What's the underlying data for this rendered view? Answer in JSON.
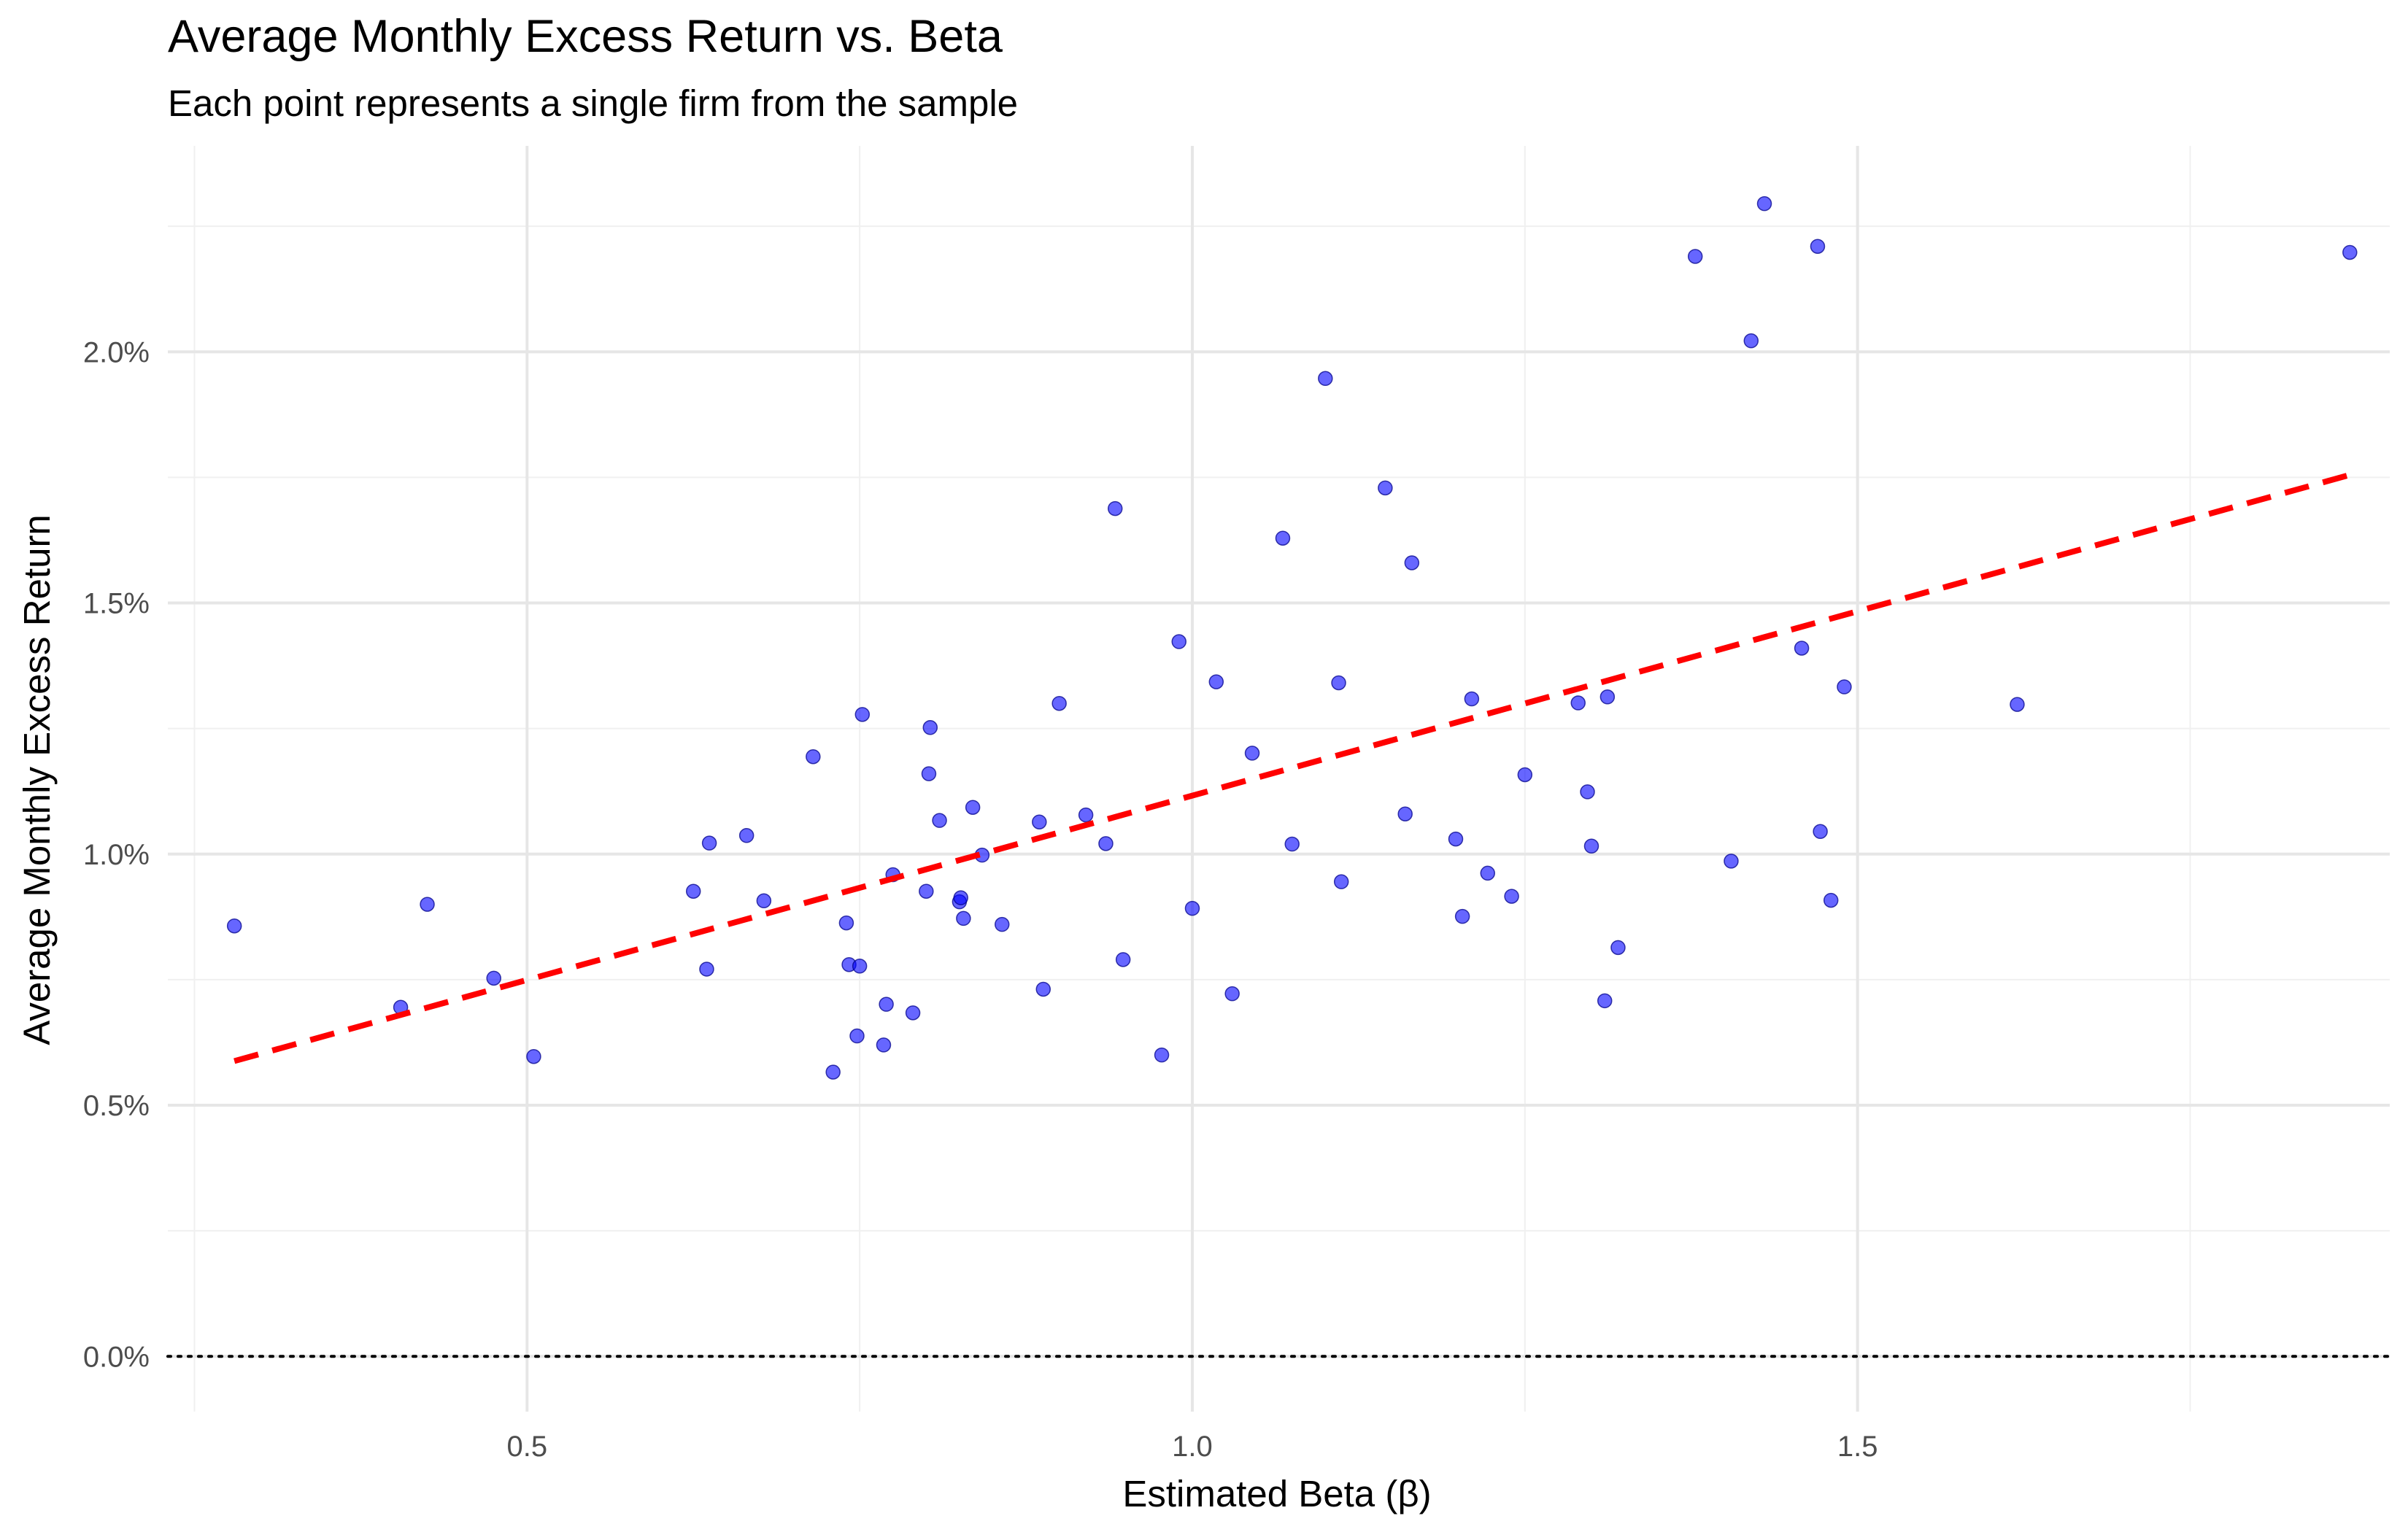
{
  "chart_data": {
    "type": "scatter",
    "title": "Average Monthly Excess Return vs. Beta",
    "subtitle": "Each point represents a single firm from the sample",
    "xlabel": "Estimated Beta (β)",
    "ylabel": "Average Monthly Excess Return",
    "xlim": [
      0.23,
      1.9
    ],
    "ylim": [
      -0.0011,
      0.0241
    ],
    "x_ticks": [
      0.5,
      1.0,
      1.5
    ],
    "x_tick_labels": [
      "0.5",
      "1.0",
      "1.5"
    ],
    "y_ticks": [
      0.0,
      0.005,
      0.01,
      0.015,
      0.02
    ],
    "y_tick_labels": [
      "0.0%",
      "0.5%",
      "1.0%",
      "1.5%",
      "2.0%"
    ],
    "grid": true,
    "reference_line": {
      "y": 0.0,
      "style": "dotted",
      "color": "#000000"
    },
    "point_color": "#0000ff",
    "point_opacity": 0.6,
    "trend_line": {
      "x": [
        0.28,
        1.87
      ],
      "y": [
        0.00588,
        0.01755
      ],
      "color": "#ff0000",
      "style": "dashed"
    },
    "points": [
      {
        "x": 0.28,
        "y": 0.00857
      },
      {
        "x": 0.405,
        "y": 0.00695
      },
      {
        "x": 0.425,
        "y": 0.009
      },
      {
        "x": 0.475,
        "y": 0.00753
      },
      {
        "x": 0.505,
        "y": 0.00597
      },
      {
        "x": 0.625,
        "y": 0.00926
      },
      {
        "x": 0.635,
        "y": 0.00771
      },
      {
        "x": 0.637,
        "y": 0.01022
      },
      {
        "x": 0.665,
        "y": 0.01037
      },
      {
        "x": 0.678,
        "y": 0.00907
      },
      {
        "x": 0.715,
        "y": 0.01194
      },
      {
        "x": 0.73,
        "y": 0.00566
      },
      {
        "x": 0.74,
        "y": 0.00863
      },
      {
        "x": 0.742,
        "y": 0.0078
      },
      {
        "x": 0.748,
        "y": 0.00638
      },
      {
        "x": 0.75,
        "y": 0.00777
      },
      {
        "x": 0.752,
        "y": 0.01278
      },
      {
        "x": 0.768,
        "y": 0.0062
      },
      {
        "x": 0.77,
        "y": 0.00701
      },
      {
        "x": 0.775,
        "y": 0.00959
      },
      {
        "x": 0.79,
        "y": 0.00684
      },
      {
        "x": 0.8,
        "y": 0.00926
      },
      {
        "x": 0.802,
        "y": 0.0116
      },
      {
        "x": 0.803,
        "y": 0.01252
      },
      {
        "x": 0.81,
        "y": 0.01067
      },
      {
        "x": 0.825,
        "y": 0.00905
      },
      {
        "x": 0.826,
        "y": 0.00913
      },
      {
        "x": 0.828,
        "y": 0.00872
      },
      {
        "x": 0.835,
        "y": 0.01093
      },
      {
        "x": 0.842,
        "y": 0.00998
      },
      {
        "x": 0.857,
        "y": 0.0086
      },
      {
        "x": 0.885,
        "y": 0.01064
      },
      {
        "x": 0.888,
        "y": 0.00731
      },
      {
        "x": 0.9,
        "y": 0.013
      },
      {
        "x": 0.92,
        "y": 0.01078
      },
      {
        "x": 0.935,
        "y": 0.01021
      },
      {
        "x": 0.942,
        "y": 0.01688
      },
      {
        "x": 0.948,
        "y": 0.0079
      },
      {
        "x": 0.977,
        "y": 0.006
      },
      {
        "x": 0.99,
        "y": 0.01423
      },
      {
        "x": 1.0,
        "y": 0.00892
      },
      {
        "x": 1.018,
        "y": 0.01343
      },
      {
        "x": 1.03,
        "y": 0.00722
      },
      {
        "x": 1.045,
        "y": 0.01201
      },
      {
        "x": 1.068,
        "y": 0.01629
      },
      {
        "x": 1.075,
        "y": 0.0102
      },
      {
        "x": 1.1,
        "y": 0.01947
      },
      {
        "x": 1.11,
        "y": 0.01341
      },
      {
        "x": 1.112,
        "y": 0.00945
      },
      {
        "x": 1.145,
        "y": 0.01729
      },
      {
        "x": 1.16,
        "y": 0.0108
      },
      {
        "x": 1.165,
        "y": 0.0158
      },
      {
        "x": 1.198,
        "y": 0.0103
      },
      {
        "x": 1.203,
        "y": 0.00876
      },
      {
        "x": 1.21,
        "y": 0.01309
      },
      {
        "x": 1.222,
        "y": 0.00962
      },
      {
        "x": 1.24,
        "y": 0.00916
      },
      {
        "x": 1.25,
        "y": 0.01158
      },
      {
        "x": 1.29,
        "y": 0.01301
      },
      {
        "x": 1.297,
        "y": 0.01124
      },
      {
        "x": 1.3,
        "y": 0.01016
      },
      {
        "x": 1.31,
        "y": 0.00708
      },
      {
        "x": 1.312,
        "y": 0.01313
      },
      {
        "x": 1.32,
        "y": 0.00814
      },
      {
        "x": 1.378,
        "y": 0.0219
      },
      {
        "x": 1.405,
        "y": 0.00986
      },
      {
        "x": 1.42,
        "y": 0.02022
      },
      {
        "x": 1.43,
        "y": 0.02295
      },
      {
        "x": 1.458,
        "y": 0.0141
      },
      {
        "x": 1.47,
        "y": 0.0221
      },
      {
        "x": 1.472,
        "y": 0.01045
      },
      {
        "x": 1.48,
        "y": 0.00908
      },
      {
        "x": 1.49,
        "y": 0.01333
      },
      {
        "x": 1.62,
        "y": 0.01298
      },
      {
        "x": 1.87,
        "y": 0.02198
      }
    ]
  }
}
